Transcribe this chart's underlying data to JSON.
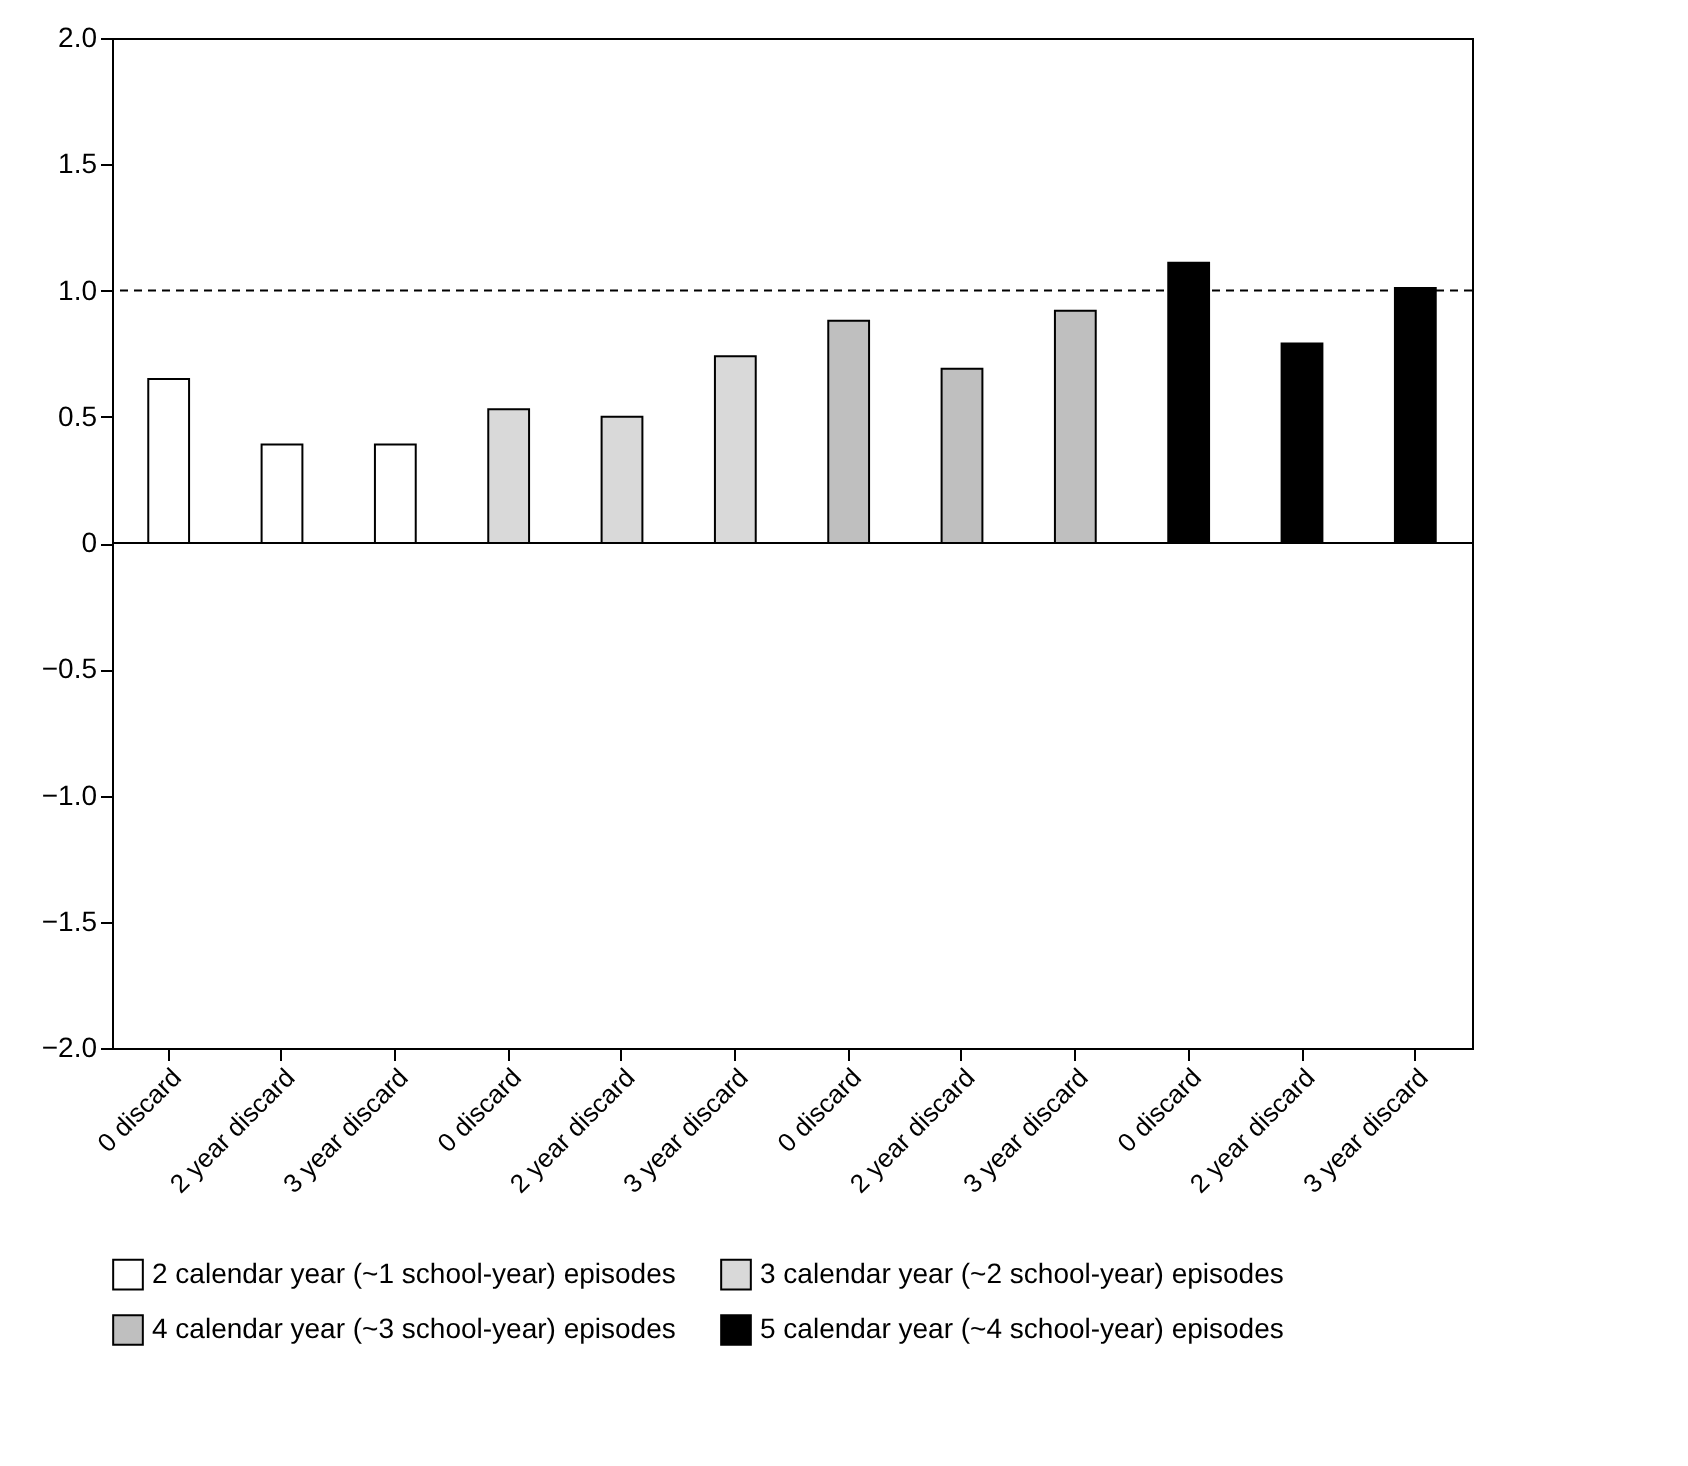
{
  "chart_data": {
    "type": "bar",
    "categories": [
      "0 discard",
      "2 year discard",
      "3 year discard",
      "0 discard",
      "2 year discard",
      "3 year discard",
      "0 discard",
      "2 year discard",
      "3 year discard",
      "0 discard",
      "2 year discard",
      "3 year discard"
    ],
    "series": [
      {
        "name": "2 calendar year (~1 school-year) episodes",
        "color": "#ffffff",
        "values": [
          0.65,
          0.39,
          0.39,
          null,
          null,
          null,
          null,
          null,
          null,
          null,
          null,
          null
        ]
      },
      {
        "name": "3 calendar year (~2 school-year) episodes",
        "color": "#d9d9d9",
        "values": [
          null,
          null,
          null,
          0.53,
          0.5,
          0.74,
          null,
          null,
          null,
          null,
          null,
          null
        ]
      },
      {
        "name": "4 calendar year (~3 school-year) episodes",
        "color": "#bfbfbf",
        "values": [
          null,
          null,
          null,
          null,
          null,
          null,
          0.88,
          0.69,
          0.92,
          null,
          null,
          null
        ]
      },
      {
        "name": "5 calendar year (~4 school-year) episodes",
        "color": "#000000",
        "values": [
          null,
          null,
          null,
          null,
          null,
          null,
          null,
          null,
          null,
          1.11,
          0.79,
          1.01
        ]
      }
    ],
    "ylim": [
      -2,
      2
    ],
    "yticks": [
      {
        "value": -2,
        "label": "−2.0"
      },
      {
        "value": -1.5,
        "label": "−1.5"
      },
      {
        "value": -1,
        "label": "−1.0"
      },
      {
        "value": -0.5,
        "label": "−0.5"
      },
      0,
      {
        "value": 0.5,
        "label": "0.5"
      },
      {
        "value": 1,
        "label": "1.0"
      },
      {
        "value": 1.5,
        "label": "1.5"
      },
      {
        "value": 2,
        "label": "2.0"
      }
    ],
    "ref_lines": [
      {
        "axis": "y",
        "value": 1,
        "line_style": "dashed",
        "color": "#000000"
      }
    ],
    "legend": "bottom",
    "grid": false
  }
}
